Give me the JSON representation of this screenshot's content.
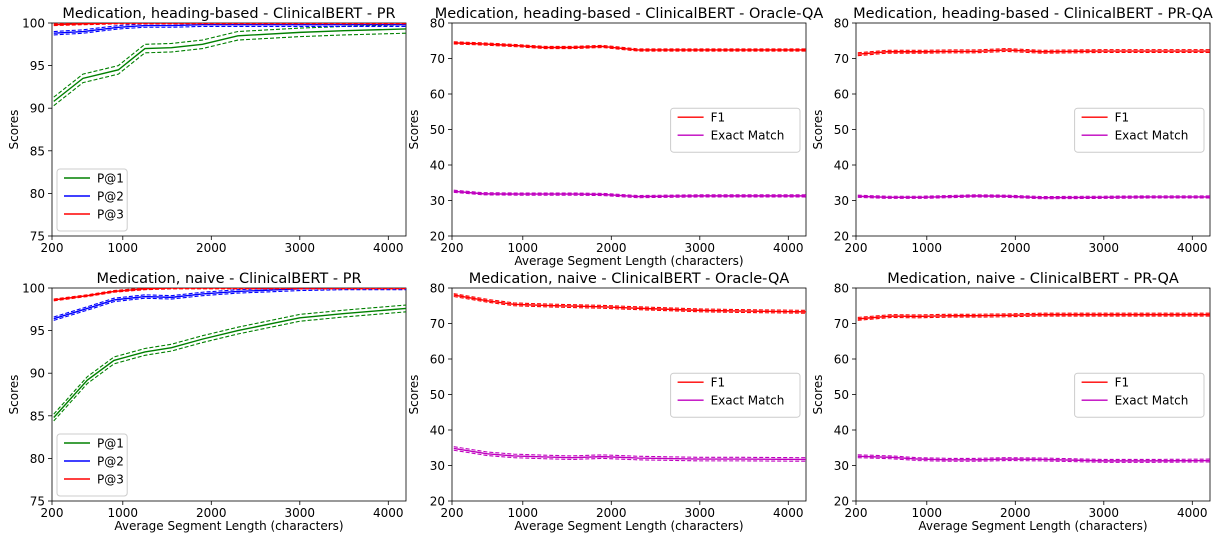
{
  "chart_data": [
    {
      "type": "line",
      "title": "Medication, heading-based - ClinicalBERT - PR",
      "xlabel": "Average Segment Length (characters)",
      "ylabel": "Scores",
      "xlim": [
        200,
        4200
      ],
      "ylim": [
        75,
        100
      ],
      "xticks": [
        200,
        1000,
        2000,
        3000,
        4000
      ],
      "yticks": [
        75,
        80,
        85,
        90,
        95,
        100
      ],
      "legend_position": "lower-left",
      "show_ylabel": true,
      "show_xlabel": false,
      "series": [
        {
          "name": "P@1",
          "color": "#008000",
          "band": 0.5,
          "x": [
            220,
            550,
            950,
            1250,
            1550,
            1900,
            2300,
            3000,
            3500,
            4200
          ],
          "y": [
            90.8,
            93.5,
            94.5,
            97.0,
            97.1,
            97.5,
            98.5,
            98.9,
            99.1,
            99.3
          ]
        },
        {
          "name": "P@2",
          "color": "#0000ff",
          "band": 0.2,
          "x": [
            220,
            550,
            950,
            1250,
            1550,
            1900,
            2300,
            3000,
            3500,
            4200
          ],
          "y": [
            98.8,
            99.0,
            99.5,
            99.7,
            99.7,
            99.8,
            99.8,
            99.8,
            99.8,
            99.8
          ]
        },
        {
          "name": "P@3",
          "color": "#ff0000",
          "band": 0.1,
          "x": [
            220,
            550,
            950,
            1250,
            1550,
            1900,
            2300,
            3000,
            3500,
            4200
          ],
          "y": [
            99.8,
            99.9,
            100,
            100,
            100,
            100,
            100,
            100,
            100,
            100
          ]
        }
      ]
    },
    {
      "type": "line",
      "title": "Medication, heading-based - ClinicalBERT - Oracle-QA",
      "xlabel": "Average Segment Length (characters)",
      "ylabel": "Scores",
      "xlim": [
        200,
        4200
      ],
      "ylim": [
        20,
        80
      ],
      "xticks": [
        200,
        1000,
        2000,
        3000,
        4000
      ],
      "yticks": [
        20,
        30,
        40,
        50,
        60,
        70,
        80
      ],
      "legend_position": "center-right",
      "show_ylabel": true,
      "show_xlabel": true,
      "series": [
        {
          "name": "F1",
          "color": "#ff0000",
          "band": 0.3,
          "x": [
            220,
            550,
            950,
            1250,
            1550,
            1900,
            2300,
            3000,
            3500,
            4200
          ],
          "y": [
            74.4,
            74.1,
            73.6,
            73.1,
            73.1,
            73.4,
            72.4,
            72.4,
            72.4,
            72.4
          ]
        },
        {
          "name": "Exact Match",
          "color": "#bf00bf",
          "band": 0.3,
          "x": [
            220,
            550,
            950,
            1250,
            1550,
            1900,
            2300,
            3000,
            3500,
            4200
          ],
          "y": [
            32.6,
            31.9,
            31.8,
            31.8,
            31.8,
            31.7,
            31.1,
            31.3,
            31.3,
            31.3
          ]
        }
      ]
    },
    {
      "type": "line",
      "title": "Medication, heading-based - ClinicalBERT - PR-QA",
      "xlabel": "Average Segment Length (characters)",
      "ylabel": "Scores",
      "xlim": [
        200,
        4200
      ],
      "ylim": [
        20,
        80
      ],
      "xticks": [
        200,
        1000,
        2000,
        3000,
        4000
      ],
      "yticks": [
        20,
        30,
        40,
        50,
        60,
        70,
        80
      ],
      "legend_position": "center-right",
      "show_ylabel": true,
      "show_xlabel": false,
      "series": [
        {
          "name": "F1",
          "color": "#ff0000",
          "band": 0.4,
          "x": [
            220,
            550,
            950,
            1250,
            1550,
            1900,
            2300,
            3000,
            3500,
            4200
          ],
          "y": [
            71.2,
            71.9,
            71.9,
            72.0,
            72.0,
            72.4,
            71.9,
            72.1,
            72.1,
            72.1
          ]
        },
        {
          "name": "Exact Match",
          "color": "#bf00bf",
          "band": 0.3,
          "x": [
            220,
            550,
            950,
            1250,
            1550,
            1900,
            2300,
            3000,
            3500,
            4200
          ],
          "y": [
            31.2,
            30.9,
            30.9,
            31.1,
            31.3,
            31.2,
            30.8,
            30.9,
            31.0,
            31.0
          ]
        }
      ]
    },
    {
      "type": "line",
      "title": "Medication, naive - ClinicalBERT - PR",
      "xlabel": "Average Segment Length (characters)",
      "ylabel": "Scores",
      "xlim": [
        200,
        4200
      ],
      "ylim": [
        75,
        100
      ],
      "xticks": [
        200,
        1000,
        2000,
        3000,
        4000
      ],
      "yticks": [
        75,
        80,
        85,
        90,
        95,
        100
      ],
      "legend_position": "lower-left",
      "show_ylabel": true,
      "show_xlabel": true,
      "series": [
        {
          "name": "P@1",
          "color": "#008000",
          "band": 0.4,
          "x": [
            220,
            600,
            900,
            1250,
            1550,
            1900,
            2300,
            3000,
            3500,
            4200
          ],
          "y": [
            84.8,
            89.2,
            91.5,
            92.5,
            93.0,
            94.0,
            95.0,
            96.5,
            97.0,
            97.6
          ]
        },
        {
          "name": "P@2",
          "color": "#0000ff",
          "band": 0.2,
          "x": [
            220,
            600,
            900,
            1250,
            1550,
            1900,
            2300,
            3000,
            3500,
            4200
          ],
          "y": [
            96.4,
            97.6,
            98.6,
            99.0,
            98.9,
            99.3,
            99.6,
            99.9,
            100,
            100
          ]
        },
        {
          "name": "P@3",
          "color": "#ff0000",
          "band": 0.1,
          "x": [
            220,
            600,
            900,
            1250,
            1550,
            1900,
            2300,
            3000,
            3500,
            4200
          ],
          "y": [
            98.6,
            99.1,
            99.6,
            99.9,
            100,
            100,
            100,
            100,
            100,
            100
          ]
        }
      ]
    },
    {
      "type": "line",
      "title": "Medication, naive - ClinicalBERT - Oracle-QA",
      "xlabel": "Average Segment Length (characters)",
      "ylabel": "Scores",
      "xlim": [
        200,
        4200
      ],
      "ylim": [
        20,
        80
      ],
      "xticks": [
        200,
        1000,
        2000,
        3000,
        4000
      ],
      "yticks": [
        20,
        30,
        40,
        50,
        60,
        70,
        80
      ],
      "legend_position": "center-right",
      "show_ylabel": true,
      "show_xlabel": true,
      "series": [
        {
          "name": "F1",
          "color": "#ff0000",
          "band": 0.4,
          "x": [
            220,
            600,
            900,
            1250,
            1550,
            1900,
            2300,
            3000,
            3500,
            4200
          ],
          "y": [
            78.0,
            76.4,
            75.4,
            75.1,
            74.9,
            74.7,
            74.3,
            73.7,
            73.5,
            73.3
          ]
        },
        {
          "name": "Exact Match",
          "color": "#bf00bf",
          "band": 0.5,
          "x": [
            220,
            600,
            900,
            1250,
            1550,
            1900,
            2300,
            3000,
            3500,
            4200
          ],
          "y": [
            34.8,
            33.3,
            32.7,
            32.4,
            32.2,
            32.5,
            32.1,
            31.8,
            31.8,
            31.7
          ]
        }
      ]
    },
    {
      "type": "line",
      "title": "Medication, naive - ClinicalBERT - PR-QA",
      "xlabel": "Average Segment Length (characters)",
      "ylabel": "Scores",
      "xlim": [
        200,
        4200
      ],
      "ylim": [
        20,
        80
      ],
      "xticks": [
        200,
        1000,
        2000,
        3000,
        4000
      ],
      "yticks": [
        20,
        30,
        40,
        50,
        60,
        70,
        80
      ],
      "legend_position": "center-right",
      "show_ylabel": true,
      "show_xlabel": true,
      "series": [
        {
          "name": "F1",
          "color": "#ff0000",
          "band": 0.4,
          "x": [
            220,
            600,
            900,
            1250,
            1550,
            1900,
            2300,
            3000,
            3500,
            4200
          ],
          "y": [
            71.3,
            72.1,
            72.0,
            72.2,
            72.2,
            72.3,
            72.5,
            72.5,
            72.5,
            72.5
          ]
        },
        {
          "name": "Exact Match",
          "color": "#bf00bf",
          "band": 0.4,
          "x": [
            220,
            600,
            900,
            1250,
            1550,
            1900,
            2300,
            3000,
            3500,
            4200
          ],
          "y": [
            32.6,
            32.3,
            31.8,
            31.6,
            31.6,
            31.8,
            31.7,
            31.3,
            31.3,
            31.4
          ]
        }
      ]
    }
  ]
}
